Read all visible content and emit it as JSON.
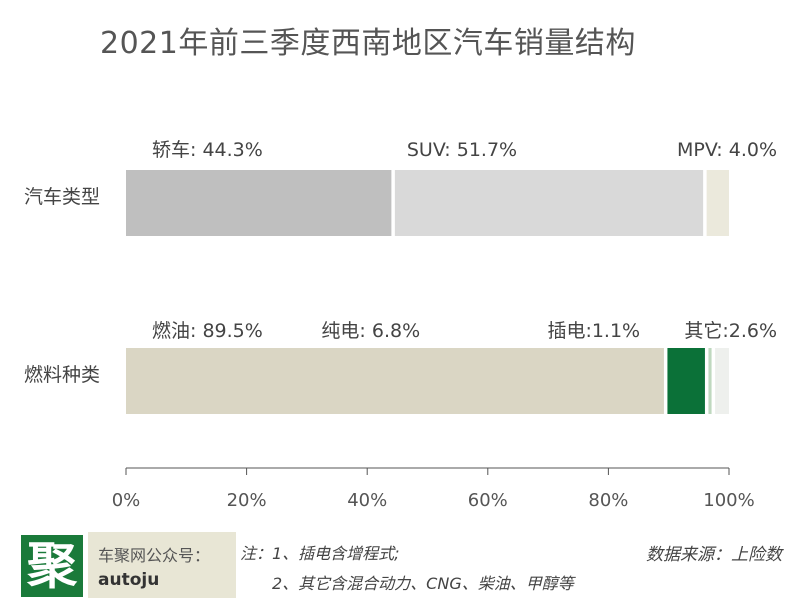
{
  "title": "2021年前三季度西南地区汽车销量结构",
  "colors": {
    "sedan": "#bfbfbf",
    "suv": "#d9d9d9",
    "mpv": "#ebe9dc",
    "fuel": "#dad6c4",
    "ev": "#0b7138",
    "phev": "#bfd8bf",
    "other": "#eef0ed",
    "axis": "#555555",
    "label": "#444444"
  },
  "chart_data": {
    "type": "bar",
    "orientation": "horizontal",
    "stacked": "percent",
    "categories": [
      "汽车类型",
      "燃料种类"
    ],
    "bars": [
      {
        "category": "汽车类型",
        "segments": [
          {
            "label": "轿车: 44.3%",
            "value": 44.3,
            "color": "#bfbfbf"
          },
          {
            "label": "SUV: 51.7%",
            "value": 51.7,
            "color": "#d9d9d9"
          },
          {
            "label": "MPV: 4.0%",
            "value": 4.0,
            "color": "#ebe9dc"
          }
        ]
      },
      {
        "category": "燃料种类",
        "segments": [
          {
            "label": "燃油: 89.5%",
            "value": 89.5,
            "color": "#dad6c4"
          },
          {
            "label": "纯电: 6.8%",
            "value": 6.8,
            "color": "#0b7138"
          },
          {
            "label": "插电:1.1%",
            "value": 1.1,
            "color": "#bfd8bf"
          },
          {
            "label": "其它:2.6%",
            "value": 2.6,
            "color": "#eef0ed"
          }
        ]
      }
    ],
    "xlim": [
      0,
      100
    ],
    "xticks": [
      0,
      20,
      40,
      60,
      80,
      100
    ],
    "xtick_labels": [
      "0%",
      "20%",
      "40%",
      "60%",
      "80%",
      "100%"
    ],
    "grid": false,
    "legend": "none"
  },
  "footer": {
    "logo_char": "聚",
    "tag_line1": "车聚网公众号：",
    "tag_line2": "autoju",
    "note_line1": "注：1、插电含增程式;",
    "note_line2": "2、其它含混合动力、CNG、柴油、甲醇等",
    "source": "数据来源：上险数"
  }
}
